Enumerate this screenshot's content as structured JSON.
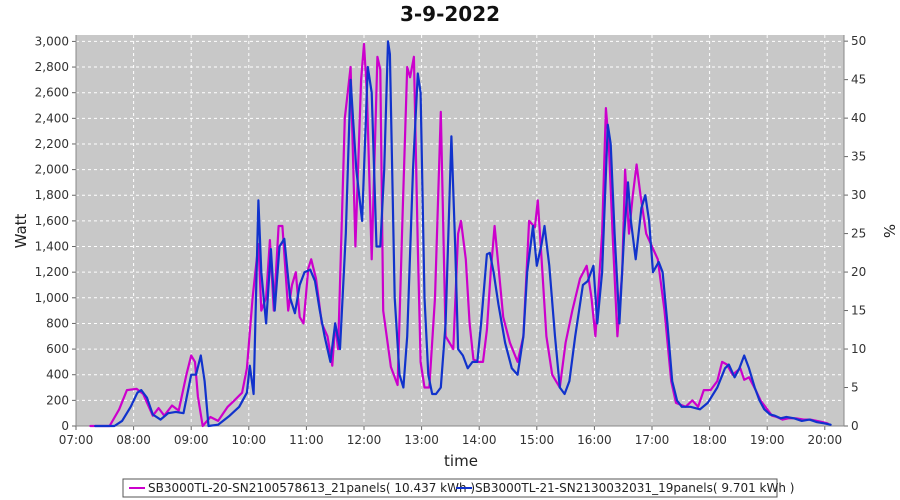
{
  "chart_data": {
    "type": "line",
    "title": "3-9-2022",
    "xlabel": "time",
    "ylabel": "Watt",
    "y2label": "%",
    "xlim": [
      "07:00",
      "20:20"
    ],
    "ylim": [
      0,
      3050
    ],
    "y2lim": [
      0,
      50.8
    ],
    "grid": true,
    "legend_position": "bottom",
    "x_ticks": [
      "07:00",
      "08:00",
      "09:00",
      "10:00",
      "11:00",
      "12:00",
      "13:00",
      "14:00",
      "15:00",
      "16:00",
      "17:00",
      "18:00",
      "19:00",
      "20:00"
    ],
    "y_ticks": [
      "0",
      "200",
      "400",
      "600",
      "800",
      "1,000",
      "1,200",
      "1,400",
      "1,600",
      "1,800",
      "2,000",
      "2,200",
      "2,400",
      "2,600",
      "2,800",
      "3,000"
    ],
    "y2_ticks": [
      "0",
      "5",
      "10",
      "15",
      "20",
      "25",
      "30",
      "35",
      "40",
      "45",
      "50"
    ],
    "series": [
      {
        "name": "SB3000TL-20-SN2100578613_21panels",
        "legend_label": "SB3000TL-20-SN2100578613_21panels( 10.437 kWh )",
        "color": "#cc00cc",
        "points": [
          [
            "07:15",
            0
          ],
          [
            "07:35",
            0
          ],
          [
            "07:45",
            130
          ],
          [
            "07:53",
            280
          ],
          [
            "08:03",
            290
          ],
          [
            "08:10",
            250
          ],
          [
            "08:20",
            80
          ],
          [
            "08:26",
            140
          ],
          [
            "08:32",
            80
          ],
          [
            "08:40",
            160
          ],
          [
            "08:47",
            120
          ],
          [
            "08:55",
            400
          ],
          [
            "09:00",
            550
          ],
          [
            "09:04",
            500
          ],
          [
            "09:07",
            230
          ],
          [
            "09:12",
            0
          ],
          [
            "09:20",
            70
          ],
          [
            "09:28",
            40
          ],
          [
            "09:38",
            150
          ],
          [
            "09:45",
            200
          ],
          [
            "09:53",
            260
          ],
          [
            "09:58",
            450
          ],
          [
            "10:04",
            1000
          ],
          [
            "10:10",
            1420
          ],
          [
            "10:13",
            900
          ],
          [
            "10:18",
            1000
          ],
          [
            "10:22",
            1450
          ],
          [
            "10:26",
            900
          ],
          [
            "10:31",
            1560
          ],
          [
            "10:35",
            1560
          ],
          [
            "10:41",
            900
          ],
          [
            "10:45",
            1100
          ],
          [
            "10:49",
            1200
          ],
          [
            "10:53",
            850
          ],
          [
            "10:57",
            800
          ],
          [
            "11:02",
            1230
          ],
          [
            "11:05",
            1300
          ],
          [
            "11:10",
            1150
          ],
          [
            "11:16",
            800
          ],
          [
            "11:22",
            700
          ],
          [
            "11:27",
            470
          ],
          [
            "11:30",
            800
          ],
          [
            "11:33",
            600
          ],
          [
            "11:40",
            2400
          ],
          [
            "11:46",
            2800
          ],
          [
            "11:51",
            1400
          ],
          [
            "11:57",
            2700
          ],
          [
            "12:00",
            2980
          ],
          [
            "12:03",
            2600
          ],
          [
            "12:08",
            1300
          ],
          [
            "12:14",
            2880
          ],
          [
            "12:17",
            2780
          ],
          [
            "12:20",
            900
          ],
          [
            "12:28",
            460
          ],
          [
            "12:35",
            320
          ],
          [
            "12:40",
            1600
          ],
          [
            "12:45",
            2800
          ],
          [
            "12:48",
            2720
          ],
          [
            "12:52",
            2880
          ],
          [
            "12:56",
            1400
          ],
          [
            "12:59",
            500
          ],
          [
            "13:03",
            300
          ],
          [
            "13:08",
            300
          ],
          [
            "13:14",
            1000
          ],
          [
            "13:20",
            2450
          ],
          [
            "13:25",
            700
          ],
          [
            "13:33",
            600
          ],
          [
            "13:38",
            1500
          ],
          [
            "13:41",
            1600
          ],
          [
            "13:46",
            1300
          ],
          [
            "13:50",
            800
          ],
          [
            "13:54",
            520
          ],
          [
            "13:59",
            500
          ],
          [
            "14:04",
            500
          ],
          [
            "14:08",
            750
          ],
          [
            "14:12",
            1200
          ],
          [
            "14:16",
            1560
          ],
          [
            "14:20",
            1250
          ],
          [
            "14:25",
            850
          ],
          [
            "14:32",
            650
          ],
          [
            "14:40",
            500
          ],
          [
            "14:46",
            700
          ],
          [
            "14:52",
            1600
          ],
          [
            "14:58",
            1550
          ],
          [
            "15:01",
            1760
          ],
          [
            "15:05",
            1300
          ],
          [
            "15:10",
            700
          ],
          [
            "15:16",
            400
          ],
          [
            "15:24",
            300
          ],
          [
            "15:30",
            650
          ],
          [
            "15:37",
            900
          ],
          [
            "15:45",
            1150
          ],
          [
            "15:52",
            1250
          ],
          [
            "15:57",
            1000
          ],
          [
            "16:01",
            700
          ],
          [
            "16:08",
            1500
          ],
          [
            "16:12",
            2480
          ],
          [
            "16:15",
            2200
          ],
          [
            "16:19",
            1500
          ],
          [
            "16:24",
            700
          ],
          [
            "16:29",
            1200
          ],
          [
            "16:32",
            2000
          ],
          [
            "16:36",
            1500
          ],
          [
            "16:40",
            1800
          ],
          [
            "16:44",
            2040
          ],
          [
            "16:48",
            1800
          ],
          [
            "16:54",
            1500
          ],
          [
            "17:00",
            1400
          ],
          [
            "17:06",
            1300
          ],
          [
            "17:13",
            900
          ],
          [
            "17:20",
            350
          ],
          [
            "17:25",
            180
          ],
          [
            "17:35",
            150
          ],
          [
            "17:42",
            200
          ],
          [
            "17:48",
            150
          ],
          [
            "17:54",
            280
          ],
          [
            "18:01",
            280
          ],
          [
            "18:08",
            350
          ],
          [
            "18:13",
            500
          ],
          [
            "18:18",
            480
          ],
          [
            "18:24",
            400
          ],
          [
            "18:32",
            450
          ],
          [
            "18:36",
            360
          ],
          [
            "18:41",
            380
          ],
          [
            "18:48",
            280
          ],
          [
            "18:53",
            200
          ],
          [
            "18:58",
            150
          ],
          [
            "19:05",
            80
          ],
          [
            "19:10",
            70
          ],
          [
            "19:16",
            50
          ],
          [
            "19:22",
            60
          ],
          [
            "19:30",
            60
          ],
          [
            "19:38",
            50
          ],
          [
            "19:45",
            50
          ],
          [
            "19:52",
            40
          ],
          [
            "19:58",
            30
          ],
          [
            "20:03",
            20
          ]
        ]
      },
      {
        "name": "SB3000TL-21-SN2130032031_19panels",
        "legend_label": "SB3000TL-21-SN2130032031_19panels( 9.701 kWh )",
        "color": "#1133cc",
        "points": [
          [
            "07:20",
            0
          ],
          [
            "07:40",
            0
          ],
          [
            "07:48",
            40
          ],
          [
            "07:57",
            150
          ],
          [
            "08:04",
            260
          ],
          [
            "08:08",
            280
          ],
          [
            "08:14",
            220
          ],
          [
            "08:20",
            90
          ],
          [
            "08:28",
            50
          ],
          [
            "08:36",
            100
          ],
          [
            "08:44",
            110
          ],
          [
            "08:52",
            100
          ],
          [
            "09:00",
            400
          ],
          [
            "09:05",
            400
          ],
          [
            "09:10",
            550
          ],
          [
            "09:14",
            350
          ],
          [
            "09:18",
            0
          ],
          [
            "09:28",
            10
          ],
          [
            "09:40",
            80
          ],
          [
            "09:50",
            150
          ],
          [
            "09:58",
            260
          ],
          [
            "10:01",
            470
          ],
          [
            "10:05",
            250
          ],
          [
            "10:10",
            1760
          ],
          [
            "10:13",
            1200
          ],
          [
            "10:18",
            800
          ],
          [
            "10:23",
            1380
          ],
          [
            "10:27",
            900
          ],
          [
            "10:32",
            1400
          ],
          [
            "10:37",
            1460
          ],
          [
            "10:43",
            1000
          ],
          [
            "10:48",
            880
          ],
          [
            "10:53",
            1100
          ],
          [
            "10:58",
            1200
          ],
          [
            "11:04",
            1220
          ],
          [
            "11:09",
            1130
          ],
          [
            "11:14",
            900
          ],
          [
            "11:19",
            700
          ],
          [
            "11:25",
            500
          ],
          [
            "11:30",
            800
          ],
          [
            "11:35",
            600
          ],
          [
            "11:41",
            1500
          ],
          [
            "11:46",
            2700
          ],
          [
            "11:52",
            2000
          ],
          [
            "11:58",
            1600
          ],
          [
            "12:04",
            2800
          ],
          [
            "12:08",
            2600
          ],
          [
            "12:13",
            1400
          ],
          [
            "12:17",
            1400
          ],
          [
            "12:21",
            2000
          ],
          [
            "12:25",
            3000
          ],
          [
            "12:27",
            2900
          ],
          [
            "12:32",
            1000
          ],
          [
            "12:37",
            400
          ],
          [
            "12:41",
            300
          ],
          [
            "12:45",
            700
          ],
          [
            "12:51",
            2000
          ],
          [
            "12:56",
            2750
          ],
          [
            "12:59",
            2600
          ],
          [
            "13:03",
            1000
          ],
          [
            "13:07",
            400
          ],
          [
            "13:11",
            250
          ],
          [
            "13:15",
            250
          ],
          [
            "13:20",
            300
          ],
          [
            "13:25",
            800
          ],
          [
            "13:31",
            2260
          ],
          [
            "13:35",
            1400
          ],
          [
            "13:38",
            600
          ],
          [
            "13:43",
            550
          ],
          [
            "13:48",
            450
          ],
          [
            "13:53",
            500
          ],
          [
            "13:58",
            500
          ],
          [
            "14:02",
            800
          ],
          [
            "14:08",
            1340
          ],
          [
            "14:11",
            1350
          ],
          [
            "14:15",
            1200
          ],
          [
            "14:20",
            950
          ],
          [
            "14:27",
            650
          ],
          [
            "14:34",
            450
          ],
          [
            "14:40",
            400
          ],
          [
            "14:46",
            700
          ],
          [
            "14:50",
            1200
          ],
          [
            "14:56",
            1560
          ],
          [
            "15:00",
            1250
          ],
          [
            "15:05",
            1420
          ],
          [
            "15:08",
            1560
          ],
          [
            "15:13",
            1250
          ],
          [
            "15:19",
            700
          ],
          [
            "15:24",
            300
          ],
          [
            "15:29",
            250
          ],
          [
            "15:34",
            350
          ],
          [
            "15:40",
            700
          ],
          [
            "15:48",
            1100
          ],
          [
            "15:53",
            1130
          ],
          [
            "15:59",
            1250
          ],
          [
            "16:03",
            800
          ],
          [
            "16:08",
            1200
          ],
          [
            "16:14",
            2350
          ],
          [
            "16:17",
            2200
          ],
          [
            "16:21",
            1500
          ],
          [
            "16:26",
            800
          ],
          [
            "16:31",
            1500
          ],
          [
            "16:35",
            1900
          ],
          [
            "16:38",
            1600
          ],
          [
            "16:43",
            1300
          ],
          [
            "16:49",
            1700
          ],
          [
            "16:53",
            1800
          ],
          [
            "16:57",
            1600
          ],
          [
            "17:01",
            1200
          ],
          [
            "17:07",
            1280
          ],
          [
            "17:11",
            1200
          ],
          [
            "17:16",
            800
          ],
          [
            "17:21",
            350
          ],
          [
            "17:26",
            200
          ],
          [
            "17:31",
            150
          ],
          [
            "17:40",
            150
          ],
          [
            "17:50",
            130
          ],
          [
            "17:58",
            180
          ],
          [
            "18:08",
            300
          ],
          [
            "18:16",
            450
          ],
          [
            "18:20",
            480
          ],
          [
            "18:26",
            380
          ],
          [
            "18:31",
            450
          ],
          [
            "18:36",
            550
          ],
          [
            "18:41",
            450
          ],
          [
            "18:47",
            300
          ],
          [
            "18:52",
            200
          ],
          [
            "18:57",
            130
          ],
          [
            "19:03",
            90
          ],
          [
            "19:08",
            80
          ],
          [
            "19:14",
            60
          ],
          [
            "19:20",
            70
          ],
          [
            "19:28",
            60
          ],
          [
            "19:36",
            40
          ],
          [
            "19:44",
            50
          ],
          [
            "19:52",
            30
          ],
          [
            "20:00",
            20
          ],
          [
            "20:06",
            10
          ]
        ]
      }
    ]
  }
}
